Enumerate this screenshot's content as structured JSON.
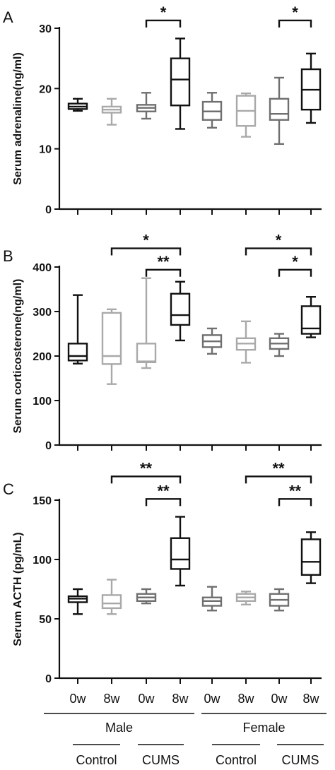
{
  "chart_data": [
    {
      "type": "boxplot",
      "panel": "A",
      "ylabel": "Serum adrenaline(ng/ml)",
      "ylim": [
        0,
        30
      ],
      "yticks": [
        0,
        10,
        20,
        30
      ],
      "boxes": [
        {
          "min": 16.3,
          "q1": 16.6,
          "median": 17.0,
          "q3": 17.5,
          "max": 18.3,
          "color": "#111111"
        },
        {
          "min": 14.0,
          "q1": 16.0,
          "median": 16.5,
          "q3": 17.0,
          "max": 18.3,
          "color": "#a9a9a9"
        },
        {
          "min": 15.0,
          "q1": 16.2,
          "median": 16.8,
          "q3": 17.3,
          "max": 19.3,
          "color": "#6f6f6f"
        },
        {
          "min": 13.3,
          "q1": 17.2,
          "median": 21.5,
          "q3": 25.0,
          "max": 28.3,
          "color": "#111111"
        },
        {
          "min": 13.5,
          "q1": 14.8,
          "median": 16.2,
          "q3": 17.8,
          "max": 19.3,
          "color": "#6f6f6f"
        },
        {
          "min": 12.0,
          "q1": 13.8,
          "median": 16.3,
          "q3": 18.8,
          "max": 19.2,
          "color": "#a9a9a9"
        },
        {
          "min": 10.8,
          "q1": 14.8,
          "median": 15.8,
          "q3": 18.3,
          "max": 21.8,
          "color": "#6f6f6f"
        },
        {
          "min": 14.3,
          "q1": 16.5,
          "median": 19.8,
          "q3": 23.2,
          "max": 25.8,
          "color": "#111111"
        }
      ],
      "brackets": [
        {
          "from": 3,
          "to": 4,
          "label": "*",
          "y": 31.3
        },
        {
          "from": 7,
          "to": 8,
          "label": "*",
          "y": 31.3
        }
      ]
    },
    {
      "type": "boxplot",
      "panel": "B",
      "ylabel": "Serum corticosterone(ng/ml)",
      "ylim": [
        0,
        400
      ],
      "yticks": [
        0,
        100,
        200,
        300,
        400
      ],
      "boxes": [
        {
          "min": 183,
          "q1": 190,
          "median": 200,
          "q3": 228,
          "max": 337,
          "color": "#111111"
        },
        {
          "min": 137,
          "q1": 182,
          "median": 200,
          "q3": 297,
          "max": 305,
          "color": "#a9a9a9"
        },
        {
          "min": 173,
          "q1": 186,
          "median": 188,
          "q3": 228,
          "max": 375,
          "color": "#a9a9a9"
        },
        {
          "min": 235,
          "q1": 270,
          "median": 292,
          "q3": 340,
          "max": 367,
          "color": "#111111"
        },
        {
          "min": 205,
          "q1": 220,
          "median": 233,
          "q3": 247,
          "max": 262,
          "color": "#6f6f6f"
        },
        {
          "min": 185,
          "q1": 214,
          "median": 228,
          "q3": 240,
          "max": 278,
          "color": "#a9a9a9"
        },
        {
          "min": 200,
          "q1": 216,
          "median": 228,
          "q3": 240,
          "max": 250,
          "color": "#6f6f6f"
        },
        {
          "min": 242,
          "q1": 250,
          "median": 262,
          "q3": 312,
          "max": 333,
          "color": "#111111"
        }
      ],
      "brackets": [
        {
          "from": 2,
          "to": 4,
          "label": "*",
          "y": 442
        },
        {
          "from": 3,
          "to": 4,
          "label": "**",
          "y": 394
        },
        {
          "from": 6,
          "to": 8,
          "label": "*",
          "y": 442
        },
        {
          "from": 7,
          "to": 8,
          "label": "*",
          "y": 394
        }
      ]
    },
    {
      "type": "boxplot",
      "panel": "C",
      "ylabel": "Serum ACTH (pg/mL)",
      "ylim": [
        0,
        150
      ],
      "yticks": [
        0,
        50,
        100,
        150
      ],
      "boxes": [
        {
          "min": 54,
          "q1": 64,
          "median": 67,
          "q3": 69,
          "max": 75,
          "color": "#111111"
        },
        {
          "min": 54,
          "q1": 59,
          "median": 63,
          "q3": 70,
          "max": 83,
          "color": "#a9a9a9"
        },
        {
          "min": 63,
          "q1": 65,
          "median": 68,
          "q3": 71,
          "max": 75,
          "color": "#6f6f6f"
        },
        {
          "min": 78,
          "q1": 92,
          "median": 100,
          "q3": 118,
          "max": 136,
          "color": "#111111"
        },
        {
          "min": 57,
          "q1": 61,
          "median": 65,
          "q3": 68,
          "max": 77,
          "color": "#6f6f6f"
        },
        {
          "min": 62,
          "q1": 65,
          "median": 68,
          "q3": 71,
          "max": 73,
          "color": "#a9a9a9"
        },
        {
          "min": 57,
          "q1": 61,
          "median": 66,
          "q3": 71,
          "max": 75,
          "color": "#6f6f6f"
        },
        {
          "min": 80,
          "q1": 87,
          "median": 98,
          "q3": 117,
          "max": 123,
          "color": "#111111"
        }
      ],
      "brackets": [
        {
          "from": 2,
          "to": 4,
          "label": "**",
          "y": 170
        },
        {
          "from": 3,
          "to": 4,
          "label": "**",
          "y": 151
        },
        {
          "from": 6,
          "to": 8,
          "label": "**",
          "y": 170
        },
        {
          "from": 7,
          "to": 8,
          "label": "**",
          "y": 151
        }
      ]
    }
  ],
  "xaxis": {
    "tick_labels": [
      "0w",
      "8w",
      "0w",
      "8w",
      "0w",
      "8w",
      "0w",
      "8w"
    ],
    "sex_groups": [
      {
        "label": "Male",
        "from": 1,
        "to": 4
      },
      {
        "label": "Female",
        "from": 5,
        "to": 8
      }
    ],
    "treatment_groups": [
      {
        "label": "Control",
        "from": 1,
        "to": 2
      },
      {
        "label": "CUMS",
        "from": 3,
        "to": 4
      },
      {
        "label": "Control",
        "from": 5,
        "to": 6
      },
      {
        "label": "CUMS",
        "from": 7,
        "to": 8
      }
    ]
  }
}
